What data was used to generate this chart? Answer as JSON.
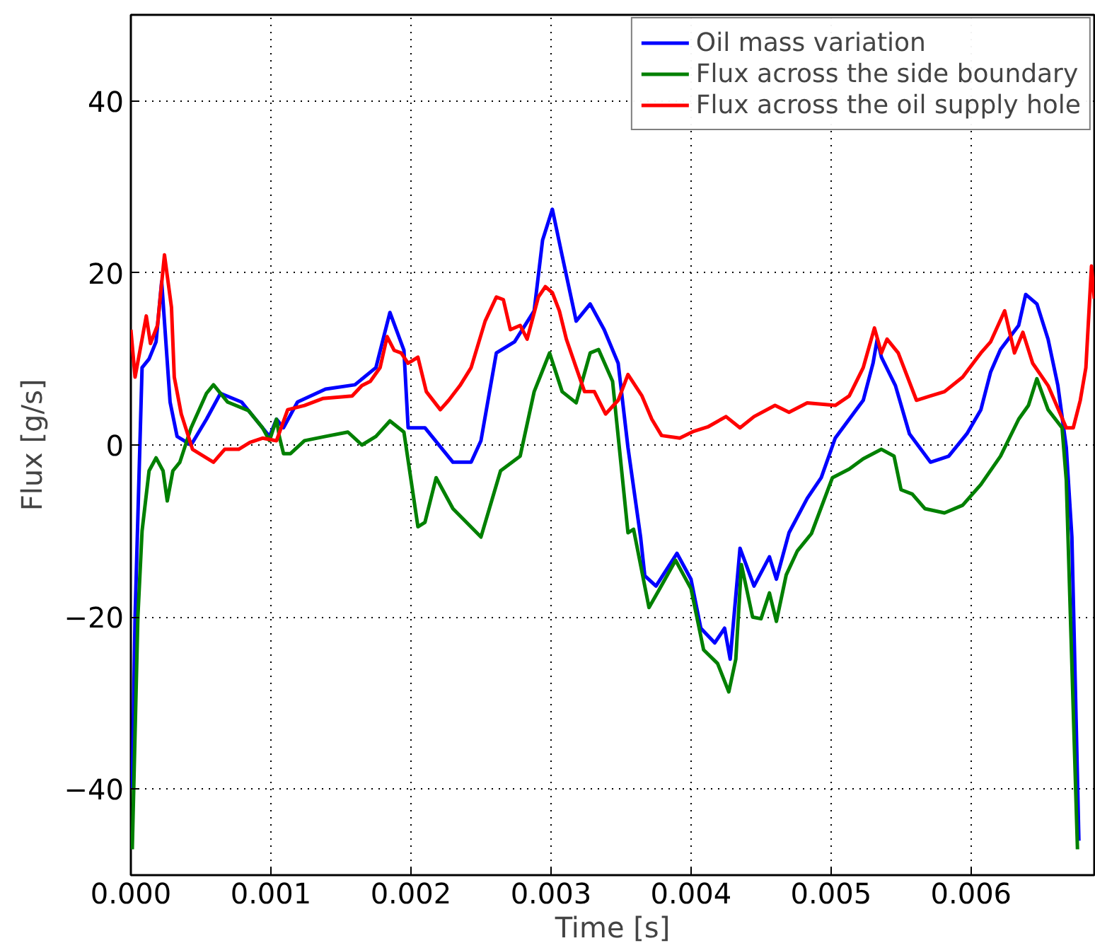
{
  "chart_data": {
    "type": "line",
    "xlabel": "Time [s]",
    "ylabel": "Flux [g/s]",
    "xlim": [
      0,
      0.00688
    ],
    "ylim": [
      -50,
      50
    ],
    "xticks": [
      {
        "value": 0,
        "label": "0.000"
      },
      {
        "value": 0.001,
        "label": "0.001"
      },
      {
        "value": 0.002,
        "label": "0.002"
      },
      {
        "value": 0.003,
        "label": "0.003"
      },
      {
        "value": 0.004,
        "label": "0.004"
      },
      {
        "value": 0.005,
        "label": "0.005"
      },
      {
        "value": 0.006,
        "label": "0.006"
      }
    ],
    "yticks": [
      {
        "value": -40,
        "label": "−40"
      },
      {
        "value": -20,
        "label": "−20"
      },
      0,
      20,
      40
    ],
    "grid": true,
    "legend": "top right",
    "marker": "none",
    "line_style": "solid",
    "series": [
      {
        "name": "Oil mass variation",
        "color": "#0000ff",
        "x": [
          1e-05,
          3e-05,
          8e-05,
          0.00013,
          0.00018,
          0.00022,
          0.00028,
          0.00033,
          0.00043,
          0.00054,
          0.00064,
          0.00079,
          0.00089,
          0.00099,
          0.00104,
          0.00109,
          0.00119,
          0.00139,
          0.0016,
          0.00175,
          0.00185,
          0.00195,
          0.00198,
          0.0021,
          0.0023,
          0.00243,
          0.0025,
          0.00261,
          0.00274,
          0.00288,
          0.00294,
          0.00301,
          0.00308,
          0.00318,
          0.00328,
          0.00338,
          0.00348,
          0.00355,
          0.00364,
          0.00367,
          0.00375,
          0.0039,
          0.004,
          0.00407,
          0.00417,
          0.00424,
          0.00428,
          0.00435,
          0.00445,
          0.00456,
          0.00461,
          0.0047,
          0.00483,
          0.00493,
          0.00503,
          0.00523,
          0.0053,
          0.00533,
          0.00536,
          0.00546,
          0.00556,
          0.00571,
          0.00584,
          0.00597,
          0.00607,
          0.00614,
          0.00621,
          0.00634,
          0.00639,
          0.00647,
          0.00655,
          0.00662,
          0.00668,
          0.00672,
          0.00677
        ],
        "values": [
          -40,
          -20,
          9,
          10,
          12,
          19,
          5,
          1,
          0,
          3,
          6,
          5,
          3,
          1,
          3,
          2,
          5,
          6.5,
          7,
          9,
          15.4,
          11,
          2,
          2,
          -2,
          -2,
          0.5,
          10.7,
          12,
          15.6,
          23.8,
          27.4,
          22,
          14.4,
          16.4,
          13.4,
          9.5,
          -0.3,
          -10.7,
          -15.2,
          -16.4,
          -12.6,
          -15.6,
          -21.3,
          -23,
          -21.3,
          -24.9,
          -12,
          -16.4,
          -13,
          -15.6,
          -10.2,
          -6.2,
          -3.8,
          0.8,
          5.2,
          9.5,
          12.3,
          10.2,
          6.9,
          1.3,
          -2,
          -1.3,
          1.3,
          4.1,
          8.5,
          11.1,
          13.9,
          17.5,
          16.4,
          12.3,
          6.9,
          -0.3,
          -10.7,
          -46
        ]
      },
      {
        "name": "Flux across the side boundary",
        "color": "#008000",
        "x": [
          1e-05,
          5e-05,
          8e-05,
          0.00013,
          0.00018,
          0.00023,
          0.00026,
          0.0003,
          0.00035,
          0.00043,
          0.00054,
          0.00059,
          0.00069,
          0.00084,
          0.00094,
          0.00099,
          0.00104,
          0.00106,
          0.00109,
          0.00114,
          0.00124,
          0.00139,
          0.00155,
          0.00165,
          0.00175,
          0.00185,
          0.00195,
          0.002,
          0.00205,
          0.0021,
          0.00218,
          0.0023,
          0.0025,
          0.00264,
          0.00278,
          0.00288,
          0.00299,
          0.00308,
          0.00318,
          0.00328,
          0.00334,
          0.00344,
          0.00355,
          0.00359,
          0.0037,
          0.00377,
          0.00389,
          0.004,
          0.00409,
          0.00419,
          0.00427,
          0.00432,
          0.00436,
          0.00444,
          0.0045,
          0.00456,
          0.00461,
          0.00468,
          0.00476,
          0.00486,
          0.00501,
          0.00513,
          0.00523,
          0.00536,
          0.00545,
          0.0055,
          0.00558,
          0.00567,
          0.00581,
          0.00594,
          0.00607,
          0.00621,
          0.00634,
          0.00641,
          0.00647,
          0.00655,
          0.00665,
          0.00668,
          0.00676
        ],
        "values": [
          -47,
          -20,
          -10,
          -3,
          -1.5,
          -3,
          -6.5,
          -3,
          -2,
          2,
          6,
          7,
          5,
          4,
          2,
          0.5,
          3,
          1,
          -1,
          -1,
          0.5,
          1,
          1.5,
          0,
          1,
          2.8,
          1.5,
          -4,
          -9.5,
          -9,
          -3.8,
          -7.4,
          -10.7,
          -3,
          -1.3,
          6.2,
          10.7,
          6.2,
          4.9,
          10.7,
          11.1,
          7.4,
          -10.2,
          -9.8,
          -18.9,
          -16.9,
          -13.4,
          -16.7,
          -23.8,
          -25.4,
          -28.7,
          -24.9,
          -13.9,
          -20,
          -20.2,
          -17.2,
          -20.5,
          -15.1,
          -12.3,
          -10.3,
          -3.8,
          -2.8,
          -1.6,
          -0.5,
          -1.3,
          -5.2,
          -5.7,
          -7.4,
          -7.9,
          -7,
          -4.6,
          -1.3,
          3,
          4.6,
          7.7,
          4.1,
          2,
          -4.1,
          -47
        ]
      },
      {
        "name": "Flux across the oil supply hole",
        "color": "#ff0000",
        "x": [
          0,
          3e-05,
          8e-05,
          0.00011,
          0.00014,
          0.00019,
          0.00024,
          0.00029,
          0.00031,
          0.00036,
          0.00044,
          0.00059,
          0.00067,
          0.00077,
          0.00085,
          0.00094,
          0.00104,
          0.00112,
          0.00124,
          0.00137,
          0.00158,
          0.00165,
          0.00171,
          0.00178,
          0.00183,
          0.00188,
          0.00193,
          0.00198,
          0.00205,
          0.00211,
          0.00221,
          0.00227,
          0.00235,
          0.00243,
          0.00253,
          0.00261,
          0.00266,
          0.00271,
          0.00278,
          0.00283,
          0.00291,
          0.00296,
          0.00301,
          0.00306,
          0.00311,
          0.00318,
          0.00324,
          0.00331,
          0.00339,
          0.00348,
          0.00355,
          0.00365,
          0.00372,
          0.00379,
          0.00392,
          0.00402,
          0.00412,
          0.00425,
          0.00435,
          0.00445,
          0.0046,
          0.0047,
          0.00483,
          0.00503,
          0.00513,
          0.00523,
          0.00531,
          0.00536,
          0.0054,
          0.00548,
          0.00561,
          0.00571,
          0.00581,
          0.00594,
          0.00607,
          0.00614,
          0.00624,
          0.00631,
          0.00637,
          0.00644,
          0.00655,
          0.00668,
          0.00673,
          0.00678,
          0.00682,
          0.00686,
          0.00688
        ],
        "values": [
          13.4,
          7.9,
          12.3,
          15,
          11.8,
          13.9,
          22.1,
          16,
          7.9,
          3.6,
          -0.5,
          -2,
          -0.5,
          -0.5,
          0.3,
          0.8,
          0.5,
          4.1,
          4.6,
          5.4,
          5.7,
          6.9,
          7.4,
          9,
          12.6,
          11,
          10.7,
          9.5,
          10.2,
          6.2,
          4.1,
          5.2,
          6.9,
          9,
          14.4,
          17.2,
          16.9,
          13.4,
          13.9,
          12.3,
          17.2,
          18.4,
          17.7,
          15.6,
          12.3,
          9,
          6.2,
          6.2,
          3.6,
          5.2,
          8.2,
          5.7,
          3,
          1.1,
          0.8,
          1.6,
          2.1,
          3.3,
          2,
          3.3,
          4.6,
          3.8,
          4.9,
          4.6,
          5.7,
          9,
          13.6,
          10.7,
          12.3,
          10.7,
          5.2,
          5.7,
          6.2,
          7.9,
          10.7,
          12,
          15.6,
          10.7,
          13.1,
          9.5,
          6.9,
          2,
          2,
          5.2,
          9,
          20.8,
          17
        ]
      }
    ]
  }
}
